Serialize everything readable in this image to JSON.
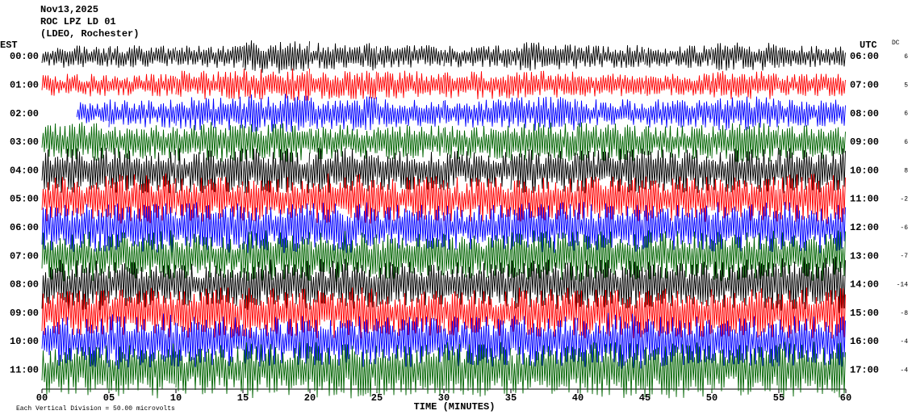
{
  "chart_data": {
    "type": "helicorder",
    "title_lines": [
      "Nov13,2025",
      "ROC LPZ LD 01",
      "(LDEO, Rochester)"
    ],
    "left_zone": "EST",
    "right_zone": "UTC",
    "dc_header": "DC",
    "x_label": "TIME (MINUTES)",
    "footer": "Each Vertical Division =   50.00 microvolts",
    "xlim": [
      0,
      60
    ],
    "xticks": [
      {
        "value": 0,
        "label": "00"
      },
      {
        "value": 5,
        "label": "05"
      },
      10,
      15,
      20,
      25,
      30,
      35,
      40,
      45,
      50,
      55,
      60
    ],
    "rows": [
      {
        "left": "00:00",
        "right": "06:00",
        "dc": 6,
        "color": "#000000",
        "start": 0,
        "amplitude": [
          0.4,
          0.4,
          0.4,
          0.6,
          0.5,
          0.4,
          0.4,
          0.5,
          0.4,
          0.4,
          0.5,
          0.4
        ]
      },
      {
        "left": "01:00",
        "right": "07:00",
        "dc": 5,
        "color": "#ff0000",
        "start": 0,
        "amplitude": [
          0.4,
          0.4,
          0.5,
          0.6,
          0.5,
          0.5,
          0.5,
          0.5,
          0.4,
          0.4,
          0.5,
          0.4
        ]
      },
      {
        "left": "02:00",
        "right": "08:00",
        "dc": 6,
        "color": "#0000ff",
        "start": 2.6,
        "amplitude": [
          0.4,
          0.5,
          0.6,
          0.7,
          0.6,
          0.5,
          0.5,
          0.6,
          0.5,
          0.5,
          0.6,
          0.5
        ]
      },
      {
        "left": "03:00",
        "right": "09:00",
        "dc": 6,
        "color": "#006400",
        "start": 0,
        "amplitude": [
          0.7,
          0.6,
          0.7,
          0.7,
          0.6,
          0.6,
          0.6,
          0.7,
          0.7,
          0.6,
          0.7,
          0.6
        ]
      },
      {
        "left": "04:00",
        "right": "10:00",
        "dc": 8,
        "color": "#000000",
        "start": 0,
        "amplitude": [
          0.8,
          0.8,
          0.8,
          0.8,
          0.8,
          0.7,
          0.7,
          0.8,
          0.8,
          0.8,
          0.8,
          0.8
        ]
      },
      {
        "left": "05:00",
        "right": "11:00",
        "dc": -2,
        "color": "#ff0000",
        "start": 0,
        "amplitude": [
          0.8,
          0.9,
          0.8,
          0.8,
          0.9,
          0.8,
          0.8,
          0.8,
          0.8,
          0.8,
          0.8,
          0.9
        ]
      },
      {
        "left": "06:00",
        "right": "12:00",
        "dc": -6,
        "color": "#0000ff",
        "start": 0,
        "amplitude": [
          0.9,
          0.9,
          0.9,
          0.9,
          0.9,
          0.8,
          0.8,
          0.9,
          0.9,
          0.8,
          0.9,
          0.9
        ]
      },
      {
        "left": "07:00",
        "right": "13:00",
        "dc": -7,
        "color": "#006400",
        "start": 0,
        "amplitude": [
          0.9,
          0.9,
          0.8,
          0.9,
          0.9,
          0.8,
          0.8,
          0.9,
          0.9,
          0.9,
          0.9,
          0.9
        ]
      },
      {
        "left": "08:00",
        "right": "14:00",
        "dc": -14,
        "color": "#000000",
        "start": 0,
        "amplitude": [
          0.9,
          0.8,
          0.8,
          0.9,
          0.9,
          0.8,
          0.8,
          0.9,
          0.9,
          0.8,
          0.9,
          1.0
        ]
      },
      {
        "left": "09:00",
        "right": "15:00",
        "dc": -8,
        "color": "#ff0000",
        "start": 0,
        "amplitude": [
          0.8,
          0.9,
          0.9,
          0.9,
          0.9,
          0.8,
          0.8,
          0.9,
          0.9,
          0.9,
          0.9,
          0.9
        ]
      },
      {
        "left": "10:00",
        "right": "16:00",
        "dc": -4,
        "color": "#0000ff",
        "start": 0,
        "amplitude": [
          0.9,
          1.0,
          0.9,
          0.9,
          0.9,
          0.9,
          0.9,
          0.9,
          1.0,
          0.9,
          0.9,
          0.9
        ]
      },
      {
        "left": "11:00",
        "right": "17:00",
        "dc": -4,
        "color": "#006400",
        "start": 0,
        "amplitude": [
          0.9,
          1.0,
          0.9,
          1.0,
          1.0,
          0.9,
          1.0,
          0.9,
          1.0,
          1.0,
          0.9,
          1.0
        ]
      }
    ]
  }
}
